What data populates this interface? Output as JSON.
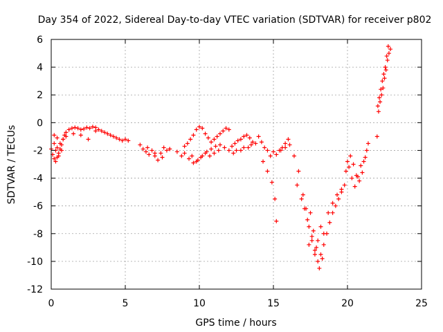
{
  "chart_data": {
    "type": "scatter",
    "title": "Day 354 of 2022, Sidereal Day-to-day VTEC variation (SDTVAR) for receiver p802",
    "xlabel": "GPS time / hours",
    "ylabel": "SDTVAR / TECUs",
    "xlim": [
      0,
      25
    ],
    "ylim": [
      -12,
      6
    ],
    "xticks": [
      0,
      5,
      10,
      15,
      20,
      25
    ],
    "yticks": [
      -12,
      -10,
      -8,
      -6,
      -4,
      -2,
      0,
      2,
      4,
      6
    ],
    "xtick_labels": [
      "0",
      "5",
      "10",
      "15",
      "20",
      "25"
    ],
    "ytick_labels": [
      "-12",
      "-10",
      "-8",
      "-6",
      "-4",
      "-2",
      "0",
      "2",
      "4",
      "6"
    ],
    "grid": true,
    "marker": "+",
    "series_color": "#ff0000",
    "series": [
      {
        "name": "p802 SDTVAR",
        "x": [
          0.0,
          0.1,
          0.2,
          0.3,
          0.4,
          0.5,
          0.6,
          0.7,
          0.8,
          0.9,
          1.0,
          1.2,
          1.4,
          1.6,
          1.8,
          2.0,
          2.2,
          2.4,
          2.6,
          2.8,
          3.0,
          3.2,
          3.4,
          3.6,
          3.8,
          4.0,
          4.2,
          4.4,
          4.6,
          4.8,
          5.0,
          5.2,
          0.2,
          0.4,
          0.6,
          0.8,
          1.0,
          1.5,
          2.0,
          2.5,
          3.0,
          0.3,
          0.5,
          0.7,
          0.2,
          0.4,
          6.0,
          6.2,
          6.4,
          6.6,
          6.8,
          7.0,
          7.2,
          7.4,
          7.6,
          7.8,
          8.0,
          6.5,
          7.0,
          7.5,
          8.0,
          8.5,
          8.8,
          9.0,
          9.2,
          9.4,
          9.6,
          9.8,
          10.0,
          10.2,
          10.4,
          10.6,
          10.8,
          11.0,
          11.2,
          11.4,
          11.6,
          11.8,
          12.0,
          9.0,
          9.3,
          9.6,
          9.9,
          10.2,
          10.5,
          10.8,
          11.1,
          11.4,
          11.7,
          12.0,
          9.5,
          9.8,
          10.1,
          10.4,
          10.7,
          11.0,
          11.3,
          12.2,
          12.4,
          12.6,
          12.8,
          13.0,
          13.2,
          13.4,
          13.6,
          13.8,
          12.5,
          13.0,
          13.5,
          12.3,
          12.8,
          13.3,
          14.0,
          14.2,
          14.4,
          14.6,
          14.8,
          15.0,
          15.2,
          15.4,
          15.6,
          15.8,
          16.0,
          14.3,
          14.6,
          14.9,
          15.1,
          15.2,
          15.5,
          15.8,
          16.1,
          16.4,
          16.7,
          17.0,
          17.2,
          17.4,
          17.6,
          17.8,
          18.0,
          18.2,
          18.4,
          18.6,
          18.8,
          19.0,
          19.2,
          19.4,
          19.6,
          19.8,
          17.3,
          17.6,
          17.9,
          18.1,
          18.3,
          17.5,
          17.7,
          18.0,
          18.2,
          16.6,
          16.9,
          17.1,
          17.4,
          17.8,
          18.4,
          18.7,
          19.0,
          19.3,
          19.6,
          19.9,
          20.0,
          20.2,
          20.4,
          20.6,
          20.8,
          21.0,
          21.2,
          21.4,
          20.1,
          20.3,
          20.5,
          20.7,
          20.9,
          21.1,
          21.3,
          22.0,
          22.1,
          22.2,
          22.3,
          22.4,
          22.5,
          22.6,
          22.7,
          22.8,
          22.9,
          22.05,
          22.15,
          22.25,
          22.35,
          22.45,
          22.55,
          22.65,
          22.75
        ],
        "y": [
          -1.9,
          -2.3,
          -2.6,
          -2.8,
          -2.5,
          -2.2,
          -1.9,
          -1.6,
          -1.2,
          -0.9,
          -0.7,
          -0.5,
          -0.4,
          -0.35,
          -0.4,
          -0.5,
          -0.45,
          -0.35,
          -0.4,
          -0.3,
          -0.35,
          -0.5,
          -0.6,
          -0.7,
          -0.8,
          -0.9,
          -1.0,
          -1.1,
          -1.2,
          -1.3,
          -1.2,
          -1.3,
          -1.5,
          -1.8,
          -1.5,
          -1.2,
          -1.0,
          -0.8,
          -0.9,
          -1.2,
          -0.6,
          -2.0,
          -2.4,
          -2.0,
          -0.9,
          -1.1,
          -1.6,
          -1.9,
          -2.1,
          -2.3,
          -2.0,
          -2.4,
          -2.7,
          -2.2,
          -1.8,
          -2.0,
          -1.9,
          -1.8,
          -2.2,
          -2.5,
          -1.9,
          -2.1,
          -2.4,
          -1.7,
          -1.5,
          -1.2,
          -0.9,
          -0.5,
          -0.3,
          -0.4,
          -0.8,
          -1.1,
          -1.4,
          -1.2,
          -1.0,
          -0.8,
          -0.6,
          -0.4,
          -0.5,
          -2.2,
          -2.6,
          -2.9,
          -2.7,
          -2.4,
          -2.1,
          -1.9,
          -1.7,
          -1.6,
          -1.8,
          -2.0,
          -2.4,
          -2.8,
          -2.5,
          -2.2,
          -2.4,
          -2.2,
          -2.0,
          -1.7,
          -1.5,
          -1.3,
          -1.2,
          -1.0,
          -0.9,
          -1.1,
          -1.4,
          -1.5,
          -2.0,
          -1.8,
          -1.6,
          -2.2,
          -2.0,
          -1.8,
          -1.0,
          -1.4,
          -1.8,
          -2.0,
          -2.4,
          -2.1,
          -2.3,
          -2.0,
          -1.8,
          -1.5,
          -1.2,
          -2.8,
          -3.5,
          -4.3,
          -5.5,
          -7.1,
          -2.0,
          -1.8,
          -1.6,
          -2.4,
          -3.5,
          -5.2,
          -6.2,
          -7.5,
          -8.5,
          -9.2,
          -10.0,
          -9.5,
          -8.8,
          -8.0,
          -7.2,
          -6.5,
          -6.0,
          -5.5,
          -5.0,
          -4.5,
          -7.0,
          -8.2,
          -9.0,
          -10.5,
          -9.8,
          -6.5,
          -7.8,
          -8.5,
          -7.5,
          -4.5,
          -5.5,
          -6.2,
          -8.8,
          -9.5,
          -8.0,
          -6.5,
          -5.8,
          -5.2,
          -4.8,
          -3.5,
          -2.8,
          -2.4,
          -3.0,
          -3.8,
          -4.2,
          -3.6,
          -2.5,
          -1.5,
          -3.2,
          -4.0,
          -4.6,
          -3.9,
          -3.1,
          -2.8,
          -2.0,
          -1.0,
          0.8,
          1.5,
          2.0,
          2.5,
          3.2,
          3.8,
          4.5,
          5.0,
          5.3,
          1.2,
          1.8,
          2.4,
          3.0,
          3.5,
          4.0,
          4.8,
          5.5
        ]
      }
    ]
  }
}
